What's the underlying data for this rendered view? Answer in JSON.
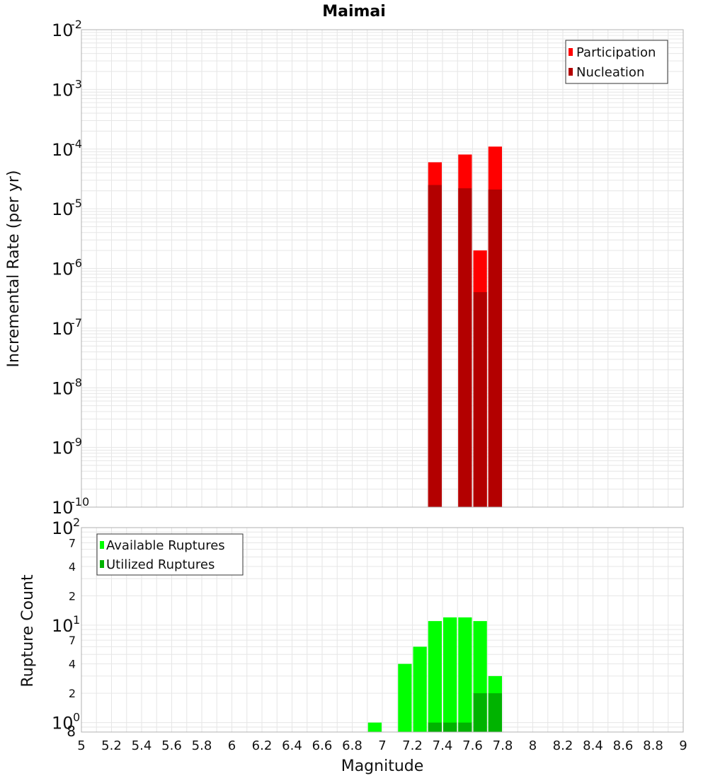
{
  "title": "Maimai",
  "colors": {
    "participation": "#ff0000",
    "nucleation": "#b30000",
    "available": "#00ff00",
    "utilized": "#00b300",
    "grid": "#e6e6e6",
    "plot_border": "#b0b0b0"
  },
  "chart_data": [
    {
      "type": "bar",
      "panel": "top",
      "title": "Maimai",
      "xlabel": "",
      "ylabel": "Incremental Rate (per yr)",
      "xlim": [
        5,
        9
      ],
      "ylim": [
        1e-10,
        0.01
      ],
      "y_scale": "log",
      "grid": true,
      "legend": "top-right",
      "bar_width": 0.1,
      "y_ticks": [
        {
          "base": "10",
          "exp": "-10"
        },
        {
          "base": "10",
          "exp": "-9"
        },
        {
          "base": "10",
          "exp": "-8"
        },
        {
          "base": "10",
          "exp": "-7"
        },
        {
          "base": "10",
          "exp": "-6"
        },
        {
          "base": "10",
          "exp": "-5"
        },
        {
          "base": "10",
          "exp": "-4"
        },
        {
          "base": "10",
          "exp": "-3"
        },
        {
          "base": "10",
          "exp": "-2"
        }
      ],
      "series": [
        {
          "name": "Participation",
          "x": [
            7.35,
            7.55,
            7.65,
            7.75
          ],
          "values": [
            6e-05,
            8.1e-05,
            2e-06,
            0.00011
          ]
        },
        {
          "name": "Nucleation",
          "x": [
            7.35,
            7.55,
            7.65,
            7.75
          ],
          "values": [
            2.5e-05,
            2.2e-05,
            4e-07,
            2.1e-05
          ]
        }
      ]
    },
    {
      "type": "bar",
      "panel": "bottom",
      "xlabel": "Magnitude",
      "ylabel": "Rupture Count",
      "xlim": [
        5,
        9
      ],
      "ylim": [
        0.8,
        100
      ],
      "y_scale": "log",
      "grid": true,
      "legend": "top-left",
      "bar_width": 0.1,
      "x_ticks": [
        "5",
        "5.2",
        "5.4",
        "5.6",
        "5.8",
        "6",
        "6.2",
        "6.4",
        "6.6",
        "6.8",
        "7",
        "7.2",
        "7.4",
        "7.6",
        "7.8",
        "8",
        "8.2",
        "8.4",
        "8.6",
        "8.8",
        "9"
      ],
      "y_ticks": [
        {
          "base": "8",
          "exp": ""
        },
        {
          "base": "10",
          "exp": "0"
        },
        {
          "base": "2",
          "exp": ""
        },
        {
          "base": "4",
          "exp": ""
        },
        {
          "base": "7",
          "exp": ""
        },
        {
          "base": "10",
          "exp": "1"
        },
        {
          "base": "2",
          "exp": ""
        },
        {
          "base": "4",
          "exp": ""
        },
        {
          "base": "7",
          "exp": ""
        },
        {
          "base": "10",
          "exp": "2"
        }
      ],
      "series": [
        {
          "name": "Available Ruptures",
          "x": [
            6.95,
            7.15,
            7.25,
            7.35,
            7.45,
            7.55,
            7.65,
            7.75
          ],
          "values": [
            1,
            4,
            6,
            11,
            12,
            12,
            11,
            3
          ]
        },
        {
          "name": "Utilized Ruptures",
          "x": [
            7.35,
            7.45,
            7.55,
            7.65,
            7.75
          ],
          "values": [
            1,
            1,
            1,
            2,
            2
          ]
        }
      ]
    }
  ]
}
